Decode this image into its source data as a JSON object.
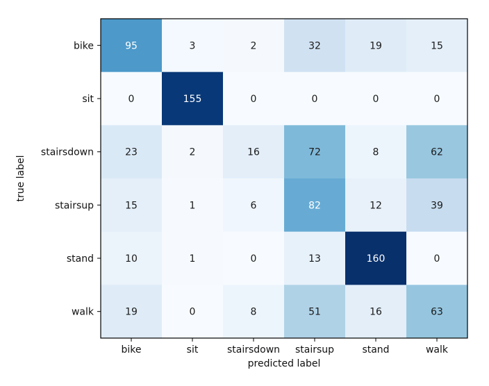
{
  "chart_data": {
    "type": "heatmap",
    "title": "",
    "xlabel": "predicted label",
    "ylabel": "true label",
    "x_categories": [
      "bike",
      "sit",
      "stairsdown",
      "stairsup",
      "stand",
      "walk"
    ],
    "y_categories": [
      "bike",
      "sit",
      "stairsdown",
      "stairsup",
      "stand",
      "walk"
    ],
    "values": [
      [
        95,
        3,
        2,
        32,
        19,
        15
      ],
      [
        0,
        155,
        0,
        0,
        0,
        0
      ],
      [
        23,
        2,
        16,
        72,
        8,
        62
      ],
      [
        15,
        1,
        6,
        82,
        12,
        39
      ],
      [
        10,
        1,
        0,
        13,
        160,
        0
      ],
      [
        19,
        0,
        8,
        51,
        16,
        63
      ]
    ],
    "value_range": [
      0,
      160
    ],
    "colormap": "Blues",
    "colormap_stops": [
      "#f7fbff",
      "#deebf7",
      "#c6dbef",
      "#9ecae1",
      "#6baed6",
      "#4292c6",
      "#2171b5",
      "#08519c",
      "#08306b"
    ],
    "label_colors": {
      "light_text": "#ffffff",
      "dark_text": "#1a1a1a"
    },
    "grid": false,
    "legend": "none"
  }
}
